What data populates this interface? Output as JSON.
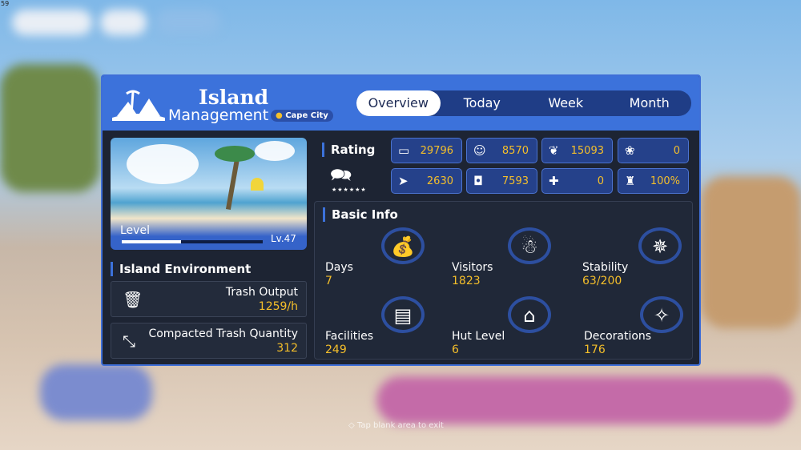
{
  "fps": "59",
  "header": {
    "title_line1": "Island",
    "title_line2": "Management",
    "location": "Cape City"
  },
  "tabs": [
    {
      "label": "Overview",
      "active": true
    },
    {
      "label": "Today"
    },
    {
      "label": "Week"
    },
    {
      "label": "Month"
    }
  ],
  "level": {
    "label": "Level",
    "value": "Lv.47",
    "progress": 0.42
  },
  "environment": {
    "title": "Island Environment",
    "trash_output_label": "Trash Output",
    "trash_output_value": "1259/h",
    "compacted_label": "Compacted Trash Quantity",
    "compacted_value": "312"
  },
  "rating": {
    "title": "Rating",
    "stars": "★★★★★★",
    "stats": [
      {
        "icon": "sofa-icon",
        "value": "29796"
      },
      {
        "icon": "person-icon",
        "value": "8570"
      },
      {
        "icon": "leaf-icon",
        "value": "15093"
      },
      {
        "icon": "paw-icon",
        "value": "0"
      },
      {
        "icon": "fish-icon",
        "value": "2630"
      },
      {
        "icon": "pot-icon",
        "value": "7593"
      },
      {
        "icon": "medkit-icon",
        "value": "0"
      },
      {
        "icon": "broom-icon",
        "value": "100%"
      }
    ]
  },
  "basic_info": {
    "title": "Basic Info",
    "items": [
      {
        "label": "Days",
        "value": "7",
        "icon": "money-bag-icon"
      },
      {
        "label": "Visitors",
        "value": "1823",
        "icon": "visitor-icon"
      },
      {
        "label": "Stability",
        "value": "63/200",
        "icon": "compass-icon"
      },
      {
        "label": "Facilities",
        "value": "249",
        "icon": "facilities-icon"
      },
      {
        "label": "Hut Level",
        "value": "6",
        "icon": "hut-icon"
      },
      {
        "label": "Decorations",
        "value": "176",
        "icon": "shell-icon"
      }
    ]
  },
  "footer": {
    "hint": "Tap blank area to exit"
  }
}
